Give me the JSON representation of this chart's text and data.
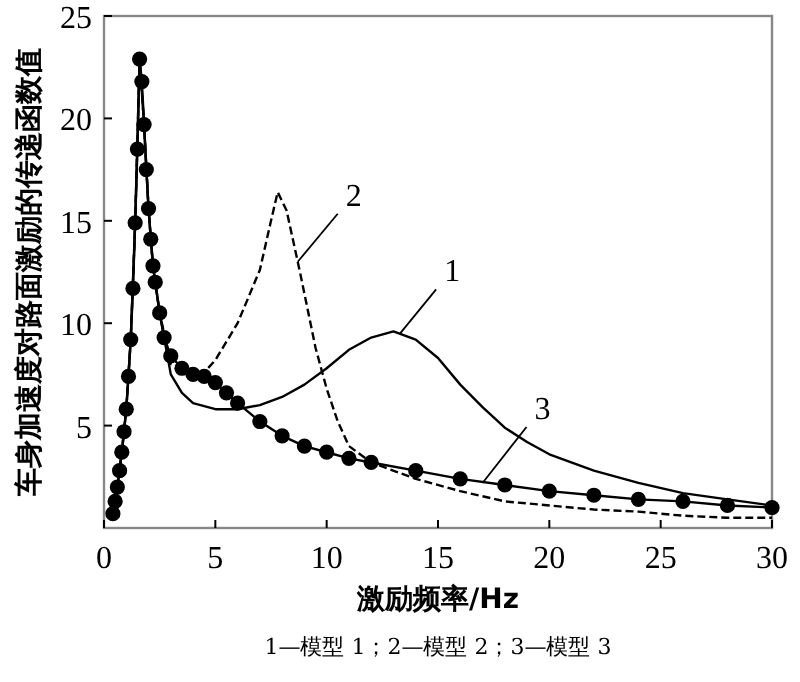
{
  "chart_data": {
    "type": "line",
    "xlabel": "激励频率/Hz",
    "ylabel": "车身加速度对路面激励的传递函数值",
    "xlim": [
      0,
      30
    ],
    "ylim": [
      0,
      25
    ],
    "xticks": [
      0,
      5,
      10,
      15,
      20,
      25,
      30
    ],
    "yticks": [
      5,
      10,
      15,
      20,
      25
    ],
    "grid": false,
    "series": [
      {
        "color": "#000000",
        "line_style": "solid",
        "marker": "none",
        "x": [
          0.4,
          0.6,
          0.8,
          1.0,
          1.2,
          1.4,
          1.6,
          1.8,
          2.0,
          2.2,
          2.5,
          3,
          3.5,
          4,
          5,
          6,
          7,
          8,
          9,
          10,
          11,
          12,
          13,
          14,
          15,
          16,
          17,
          18,
          19,
          20,
          22,
          24,
          26,
          28,
          30
        ],
        "values": [
          0.7,
          2.0,
          3.7,
          5.8,
          9.2,
          14.9,
          22.9,
          19.7,
          15.6,
          12.8,
          10.5,
          7.5,
          6.6,
          6.1,
          5.8,
          5.8,
          6.0,
          6.4,
          7.0,
          7.8,
          8.7,
          9.3,
          9.6,
          9.2,
          8.3,
          7.0,
          5.9,
          4.9,
          4.2,
          3.6,
          2.8,
          2.2,
          1.7,
          1.4,
          1.1
        ]
      },
      {
        "color": "#000000",
        "line_style": "dashed",
        "marker": "none",
        "x": [
          0.4,
          0.6,
          0.8,
          1.0,
          1.2,
          1.4,
          1.6,
          1.8,
          2.0,
          2.2,
          2.5,
          3,
          4,
          4.5,
          5,
          6,
          7,
          7.5,
          7.8,
          8.2,
          8.8,
          9.5,
          10,
          10.5,
          11,
          12,
          14,
          16,
          18,
          20,
          22,
          24,
          26,
          28,
          30
        ],
        "values": [
          0.7,
          2.0,
          3.7,
          5.8,
          9.2,
          14.9,
          22.9,
          19.7,
          15.6,
          12.8,
          10.5,
          8.0,
          7.6,
          7.6,
          8.2,
          10.0,
          12.6,
          15.0,
          16.4,
          15.5,
          12.5,
          8.8,
          6.8,
          5.2,
          4.0,
          3.2,
          2.4,
          1.8,
          1.3,
          1.1,
          0.9,
          0.8,
          0.6,
          0.5,
          0.5
        ]
      },
      {
        "color": "#000000",
        "line_style": "solid",
        "marker": "circle",
        "x": [
          0.4,
          0.5,
          0.6,
          0.7,
          0.8,
          0.9,
          1.0,
          1.1,
          1.2,
          1.3,
          1.4,
          1.5,
          1.6,
          1.7,
          1.8,
          1.9,
          2.0,
          2.1,
          2.2,
          2.3,
          2.5,
          2.7,
          3,
          3.5,
          4,
          4.5,
          5,
          5.5,
          6,
          7,
          8,
          9,
          10,
          11,
          12,
          14,
          16,
          18,
          20,
          22,
          24,
          26,
          28,
          30
        ],
        "values": [
          0.7,
          1.3,
          2.0,
          2.8,
          3.7,
          4.7,
          5.8,
          7.4,
          9.2,
          11.7,
          14.9,
          18.5,
          22.9,
          21.8,
          19.7,
          17.5,
          15.6,
          14.1,
          12.8,
          12.0,
          10.5,
          9.3,
          8.4,
          7.8,
          7.5,
          7.4,
          7.1,
          6.6,
          6.1,
          5.2,
          4.5,
          4.0,
          3.7,
          3.4,
          3.2,
          2.8,
          2.4,
          2.1,
          1.8,
          1.6,
          1.4,
          1.3,
          1.1,
          1.0
        ]
      }
    ],
    "annotations": [
      {
        "text": "1",
        "x": 13.3,
        "y": 9.5
      },
      {
        "text": "2",
        "x": 8.7,
        "y": 13.0
      },
      {
        "text": "3",
        "x": 17,
        "y": 2.2
      },
      "1—模型 1；2—模型 2；3—模型 3"
    ]
  }
}
